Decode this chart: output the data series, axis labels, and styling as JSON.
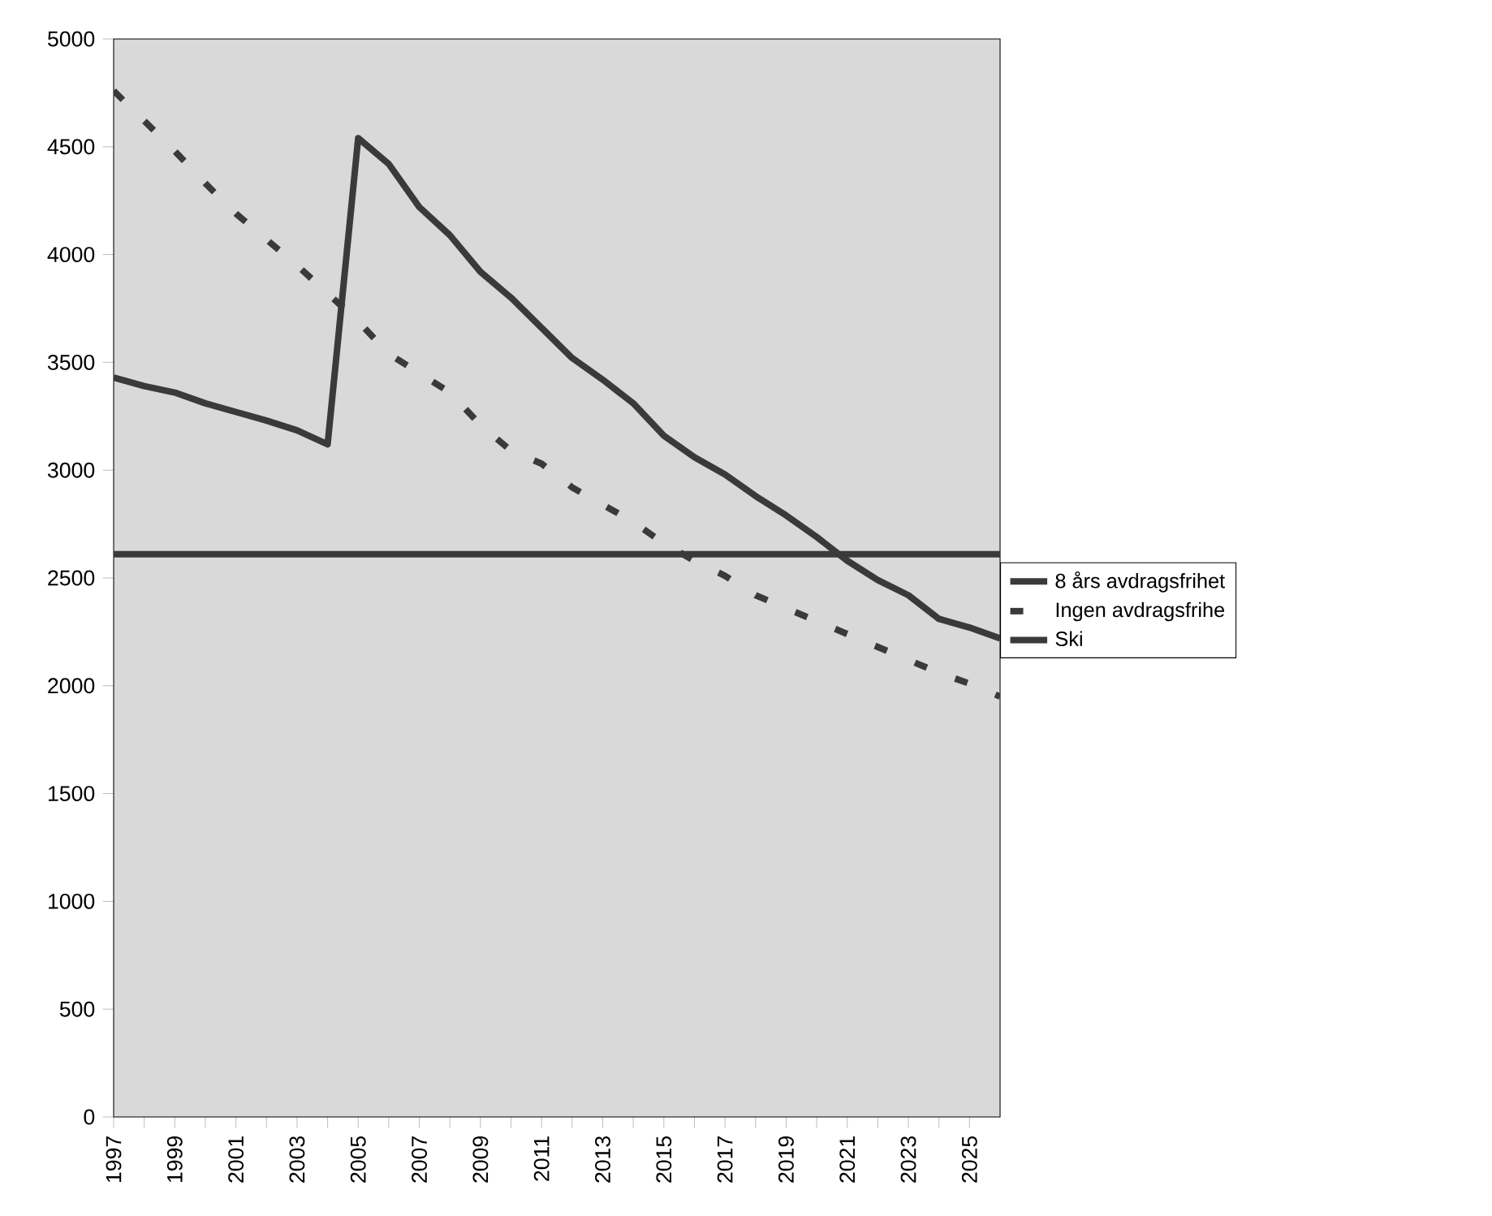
{
  "chart_data": {
    "type": "line",
    "x": [
      1997,
      1998,
      1999,
      2000,
      2001,
      2002,
      2003,
      2004,
      2005,
      2006,
      2007,
      2008,
      2009,
      2010,
      2011,
      2012,
      2013,
      2014,
      2015,
      2016,
      2017,
      2018,
      2019,
      2020,
      2021,
      2022,
      2023,
      2024,
      2025,
      2026
    ],
    "series": [
      {
        "name": "8 års avdragsfrihet",
        "color": "#3a3a3a",
        "line_style": "solid",
        "values": [
          3430,
          3390,
          3360,
          3310,
          3270,
          3230,
          3185,
          3120,
          4540,
          4420,
          4220,
          4090,
          3920,
          3800,
          3660,
          3520,
          3420,
          3310,
          3160,
          3060,
          2980,
          2880,
          2790,
          2690,
          2580,
          2490,
          2420,
          2310,
          2270,
          2220
        ]
      },
      {
        "name": "Ingen avdragsfrihe",
        "color": "#3a3a3a",
        "line_style": "dashed",
        "values": [
          4760,
          4620,
          4480,
          4330,
          4190,
          4070,
          3950,
          3820,
          3690,
          3540,
          3450,
          3360,
          3210,
          3090,
          3030,
          2920,
          2840,
          2760,
          2660,
          2580,
          2510,
          2420,
          2360,
          2300,
          2240,
          2180,
          2120,
          2060,
          2010,
          1950
        ]
      },
      {
        "name": "Ski",
        "color": "#3a3a3a",
        "line_style": "solid",
        "values": [
          2610,
          2610,
          2610,
          2610,
          2610,
          2610,
          2610,
          2610,
          2610,
          2610,
          2610,
          2610,
          2610,
          2610,
          2610,
          2610,
          2610,
          2610,
          2610,
          2610,
          2610,
          2610,
          2610,
          2610,
          2610,
          2610,
          2610,
          2610,
          2610,
          2610
        ]
      }
    ],
    "xlim": [
      1997,
      2026
    ],
    "xticks": [
      1997,
      {
        "value": 1998,
        "label": null
      },
      1999,
      {
        "value": 2000,
        "label": null
      },
      2001,
      {
        "value": 2002,
        "label": null
      },
      2003,
      {
        "value": 2004,
        "label": null
      },
      2005,
      {
        "value": 2006,
        "label": null
      },
      2007,
      {
        "value": 2008,
        "label": null
      },
      2009,
      {
        "value": 2010,
        "label": null
      },
      2011,
      {
        "value": 2012,
        "label": null
      },
      2013,
      {
        "value": 2014,
        "label": null
      },
      2015,
      {
        "value": 2016,
        "label": null
      },
      2017,
      {
        "value": 2018,
        "label": null
      },
      2019,
      {
        "value": 2020,
        "label": null
      },
      2021,
      {
        "value": 2022,
        "label": null
      },
      2023,
      {
        "value": 2024,
        "label": null
      },
      2025
    ],
    "ylim": [
      0,
      5000
    ],
    "yticks": [
      0,
      500,
      1000,
      1500,
      2000,
      2500,
      3000,
      3500,
      4000,
      4500,
      5000
    ],
    "grid": false,
    "legend": "right",
    "marker": "none"
  }
}
